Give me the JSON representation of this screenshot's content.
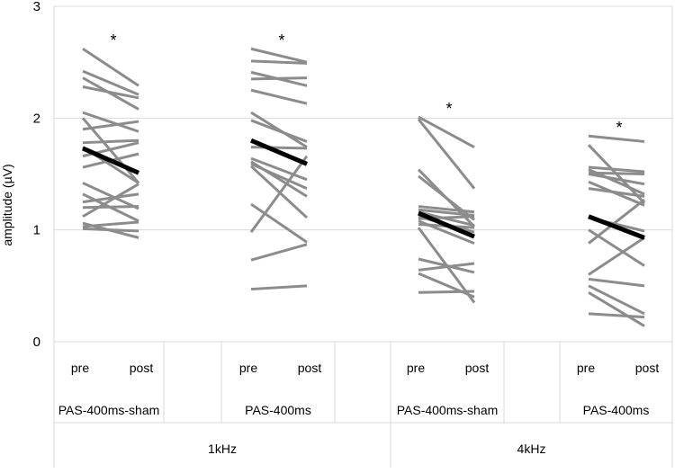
{
  "chart_data": {
    "type": "line",
    "title": "",
    "ylabel": "amplitude (µV)",
    "ylim": [
      0,
      3
    ],
    "yticks": [
      "0",
      "1",
      "2",
      "3"
    ],
    "grid": "horizontal",
    "x_level_labels": [
      "pre",
      "post"
    ],
    "groups": [
      {
        "label": "PAS-400ms-sham",
        "frequency": "1kHz",
        "significance": "*",
        "mean": [
          1.73,
          1.51
        ],
        "subjects": [
          [
            2.62,
            2.29
          ],
          [
            2.42,
            2.21
          ],
          [
            2.36,
            2.08
          ],
          [
            2.28,
            2.18
          ],
          [
            2.05,
            1.88
          ],
          [
            2.0,
            1.42
          ],
          [
            1.9,
            1.97
          ],
          [
            1.78,
            1.8
          ],
          [
            1.74,
            1.42
          ],
          [
            1.66,
            1.78
          ],
          [
            1.56,
            1.68
          ],
          [
            1.42,
            1.19
          ],
          [
            1.32,
            1.08
          ],
          [
            1.25,
            1.32
          ],
          [
            1.2,
            1.21
          ],
          [
            1.12,
            1.41
          ],
          [
            1.06,
            0.93
          ],
          [
            1.03,
            1.07
          ],
          [
            1.01,
            0.99
          ]
        ]
      },
      {
        "label": "PAS-400ms",
        "frequency": "1kHz",
        "significance": "*",
        "mean": [
          1.8,
          1.59
        ],
        "subjects": [
          [
            2.62,
            2.5
          ],
          [
            2.51,
            2.49
          ],
          [
            2.41,
            2.29
          ],
          [
            2.35,
            2.36
          ],
          [
            2.25,
            2.13
          ],
          [
            2.05,
            1.74
          ],
          [
            1.98,
            1.79
          ],
          [
            1.74,
            1.73
          ],
          [
            1.64,
            1.45
          ],
          [
            1.61,
            1.3
          ],
          [
            1.59,
            1.37
          ],
          [
            1.57,
            1.11
          ],
          [
            1.23,
            0.89
          ],
          [
            0.98,
            1.66
          ],
          [
            0.73,
            0.87
          ],
          [
            0.47,
            0.5
          ]
        ]
      },
      {
        "label": "PAS-400ms-sham",
        "frequency": "4kHz",
        "significance": "*",
        "mean": [
          1.15,
          0.94
        ],
        "subjects": [
          [
            2.01,
            1.74
          ],
          [
            1.99,
            1.37
          ],
          [
            1.54,
            1.03
          ],
          [
            1.48,
            1.09
          ],
          [
            1.21,
            1.16
          ],
          [
            1.18,
            1.13
          ],
          [
            1.16,
            1.04
          ],
          [
            1.12,
            0.98
          ],
          [
            1.1,
            1.12
          ],
          [
            1.08,
            0.88
          ],
          [
            1.05,
            1.02
          ],
          [
            1.02,
            0.35
          ],
          [
            0.74,
            0.62
          ],
          [
            0.64,
            0.7
          ],
          [
            0.61,
            0.4
          ],
          [
            0.44,
            0.45
          ]
        ]
      },
      {
        "label": "PAS-400ms",
        "frequency": "4kHz",
        "significance": "*",
        "mean": [
          1.12,
          0.93
        ],
        "subjects": [
          [
            1.84,
            1.79
          ],
          [
            1.76,
            1.24
          ],
          [
            1.56,
            1.52
          ],
          [
            1.54,
            1.32
          ],
          [
            1.51,
            1.5
          ],
          [
            1.5,
            1.41
          ],
          [
            1.43,
            1.22
          ],
          [
            1.37,
            1.3
          ],
          [
            1.11,
            0.99
          ],
          [
            1.0,
            0.68
          ],
          [
            0.88,
            1.27
          ],
          [
            0.6,
            0.93
          ],
          [
            0.56,
            0.5
          ],
          [
            0.5,
            0.25
          ],
          [
            0.44,
            0.14
          ],
          [
            0.25,
            0.22
          ]
        ]
      }
    ],
    "frequency_groups": [
      "1kHz",
      "4kHz"
    ],
    "colors": {
      "subject_line": "#8c8c8c",
      "mean_line": "#000000",
      "gridline": "#d9d9d9",
      "border": "#d9d9d9",
      "text": "#000000"
    }
  }
}
